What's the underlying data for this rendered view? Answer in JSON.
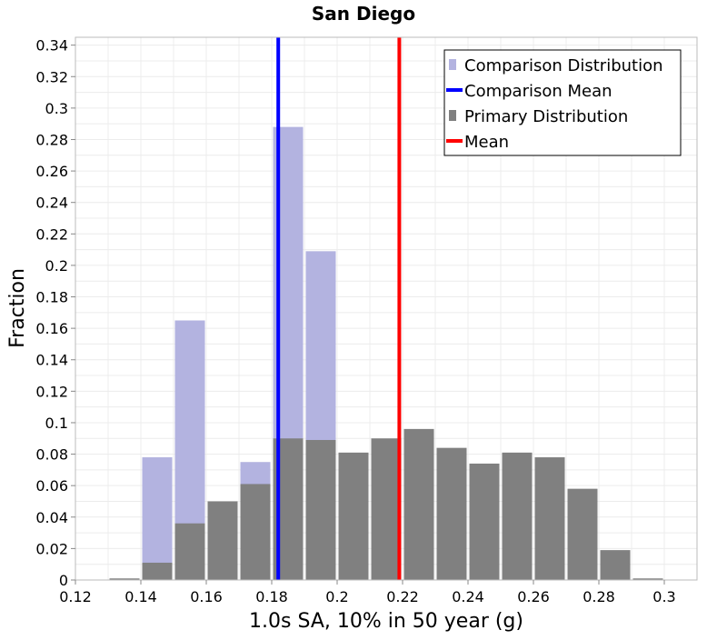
{
  "chart_data": {
    "type": "bar",
    "title": "San Diego",
    "xlabel": "1.0s SA, 10% in 50 year (g)",
    "ylabel": "Fraction",
    "xlim": [
      0.12,
      0.31
    ],
    "ylim": [
      0,
      0.345
    ],
    "bin_width": 0.01,
    "x_ticks": [
      "0.12",
      "0.14",
      "0.16",
      "0.18",
      "0.2",
      "0.22",
      "0.24",
      "0.26",
      "0.28",
      "0.3"
    ],
    "y_ticks": [
      "0",
      "0.02",
      "0.04",
      "0.06",
      "0.08",
      "0.1",
      "0.12",
      "0.14",
      "0.16",
      "0.18",
      "0.2",
      "0.22",
      "0.24",
      "0.26",
      "0.28",
      "0.3",
      "0.32",
      "0.34"
    ],
    "grid": true,
    "legend_position": "top-right",
    "series": [
      {
        "name": "Comparison Distribution",
        "color": "#b3b3e0",
        "bins": [
          {
            "x": 0.15,
            "y": 0.078
          },
          {
            "x": 0.16,
            "y": 0.165
          },
          {
            "x": 0.18,
            "y": 0.075
          },
          {
            "x": 0.19,
            "y": 0.288
          },
          {
            "x": 0.2,
            "y": 0.209
          }
        ]
      },
      {
        "name": "Primary Distribution",
        "color": "#808080",
        "bins": [
          {
            "x": 0.14,
            "y": 0.001
          },
          {
            "x": 0.15,
            "y": 0.011
          },
          {
            "x": 0.16,
            "y": 0.036
          },
          {
            "x": 0.17,
            "y": 0.05
          },
          {
            "x": 0.18,
            "y": 0.061
          },
          {
            "x": 0.19,
            "y": 0.09
          },
          {
            "x": 0.2,
            "y": 0.089
          },
          {
            "x": 0.21,
            "y": 0.081
          },
          {
            "x": 0.22,
            "y": 0.09
          },
          {
            "x": 0.23,
            "y": 0.096
          },
          {
            "x": 0.24,
            "y": 0.084
          },
          {
            "x": 0.25,
            "y": 0.074
          },
          {
            "x": 0.26,
            "y": 0.081
          },
          {
            "x": 0.27,
            "y": 0.078
          },
          {
            "x": 0.28,
            "y": 0.058
          },
          {
            "x": 0.29,
            "y": 0.019
          },
          {
            "x": 0.3,
            "y": 0.001
          }
        ]
      }
    ],
    "lines": [
      {
        "name": "Comparison Mean",
        "color": "#0000ff",
        "x": 0.182
      },
      {
        "name": "Mean",
        "color": "#ff0000",
        "x": 0.219
      }
    ],
    "legend": [
      {
        "label": "Comparison Distribution",
        "kind": "square",
        "color": "#b3b3e0"
      },
      {
        "label": "Comparison Mean",
        "kind": "line",
        "color": "#0000ff"
      },
      {
        "label": "Primary Distribution",
        "kind": "square",
        "color": "#808080"
      },
      {
        "label": "Mean",
        "kind": "line",
        "color": "#ff0000"
      }
    ]
  }
}
